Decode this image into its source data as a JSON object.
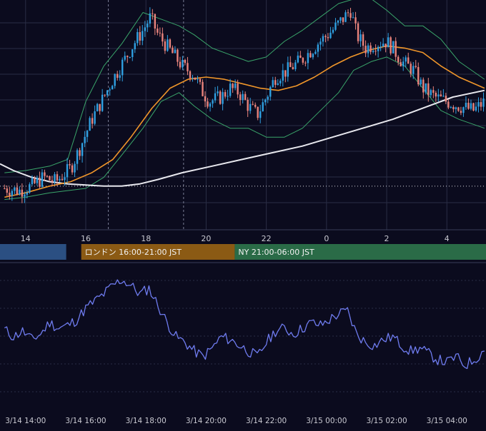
{
  "colors": {
    "background": "#0b0b1e",
    "grid": "#2a2d45",
    "candle_up": "#2f9fe0",
    "candle_down": "#e8837c",
    "ma_orange": "#f0962a",
    "ma_white": "#e8e8ee",
    "bollinger": "#3aa56a",
    "oscillator": "#6f7cf0",
    "session_tokyo": "#2b4f82",
    "session_london": "#8b5a14",
    "session_ny": "#2a6b47",
    "axis_text": "#c8c8d0",
    "session_text": "#f2f2f2"
  },
  "chart_data": [
    {
      "type": "candlestick",
      "x_tick_labels": [
        "14",
        "16",
        "18",
        "20",
        "22",
        "0",
        "2",
        "4"
      ],
      "x_hours": [
        14,
        16,
        18,
        20,
        22,
        24,
        26,
        28
      ],
      "x_range": [
        13.15,
        29.3
      ],
      "y_range": [
        0,
        100
      ],
      "dotted_reference_level": 18,
      "dashed_markers_hours": [
        16.75,
        19.25
      ],
      "close_series": [
        [
          13.3,
          17
        ],
        [
          13.8,
          16
        ],
        [
          14.2,
          18
        ],
        [
          14.6,
          22
        ],
        [
          15.0,
          20
        ],
        [
          15.5,
          26
        ],
        [
          15.8,
          35
        ],
        [
          16.2,
          48
        ],
        [
          16.6,
          58
        ],
        [
          16.9,
          66
        ],
        [
          17.3,
          75
        ],
        [
          17.6,
          82
        ],
        [
          17.9,
          88
        ],
        [
          18.15,
          94
        ],
        [
          18.4,
          86
        ],
        [
          18.8,
          79
        ],
        [
          19.2,
          72
        ],
        [
          19.6,
          68
        ],
        [
          19.8,
          62
        ],
        [
          20.1,
          56
        ],
        [
          20.5,
          58
        ],
        [
          20.8,
          62
        ],
        [
          21.1,
          60
        ],
        [
          21.4,
          54
        ],
        [
          21.7,
          50
        ],
        [
          22.0,
          58
        ],
        [
          22.3,
          67
        ],
        [
          22.7,
          70
        ],
        [
          23.2,
          75
        ],
        [
          23.7,
          82
        ],
        [
          24.2,
          88
        ],
        [
          24.6,
          94
        ],
        [
          24.8,
          97
        ],
        [
          25.0,
          86
        ],
        [
          25.3,
          80
        ],
        [
          25.6,
          82
        ],
        [
          26.0,
          83
        ],
        [
          26.2,
          80
        ],
        [
          26.5,
          74
        ],
        [
          26.9,
          70
        ],
        [
          27.2,
          62
        ],
        [
          27.6,
          58
        ],
        [
          28.0,
          56
        ],
        [
          28.4,
          54
        ],
        [
          28.9,
          52
        ],
        [
          29.25,
          56
        ]
      ],
      "ma_orange": [
        [
          13.3,
          13
        ],
        [
          14.0,
          15
        ],
        [
          14.8,
          18
        ],
        [
          15.5,
          20
        ],
        [
          16.2,
          24
        ],
        [
          16.9,
          30
        ],
        [
          17.5,
          40
        ],
        [
          18.2,
          53
        ],
        [
          18.8,
          62
        ],
        [
          19.4,
          66
        ],
        [
          20.0,
          67
        ],
        [
          20.6,
          66
        ],
        [
          21.2,
          64
        ],
        [
          21.8,
          62
        ],
        [
          22.4,
          61
        ],
        [
          23.0,
          63
        ],
        [
          23.6,
          67
        ],
        [
          24.2,
          72
        ],
        [
          24.8,
          76
        ],
        [
          25.4,
          79
        ],
        [
          26.0,
          81
        ],
        [
          26.6,
          80
        ],
        [
          27.2,
          78
        ],
        [
          27.8,
          72
        ],
        [
          28.4,
          67
        ],
        [
          29.25,
          62
        ]
      ],
      "ma_white": [
        [
          13.15,
          28
        ],
        [
          13.6,
          25
        ],
        [
          14.2,
          22
        ],
        [
          14.8,
          20
        ],
        [
          15.4,
          19
        ],
        [
          16.0,
          18.5
        ],
        [
          16.6,
          18
        ],
        [
          17.2,
          18
        ],
        [
          17.8,
          19
        ],
        [
          18.4,
          21
        ],
        [
          19.2,
          24
        ],
        [
          20.2,
          27
        ],
        [
          21.2,
          30
        ],
        [
          22.2,
          33
        ],
        [
          23.2,
          36
        ],
        [
          24.2,
          40
        ],
        [
          25.2,
          44
        ],
        [
          26.2,
          48
        ],
        [
          27.2,
          53
        ],
        [
          28.2,
          58
        ],
        [
          29.25,
          61
        ]
      ],
      "bollinger_upper": [
        [
          13.3,
          24
        ],
        [
          14.0,
          25
        ],
        [
          14.8,
          27
        ],
        [
          15.4,
          30
        ],
        [
          16.0,
          56
        ],
        [
          16.6,
          72
        ],
        [
          17.2,
          82
        ],
        [
          17.9,
          96
        ],
        [
          18.5,
          93
        ],
        [
          19.1,
          90
        ],
        [
          19.6,
          86
        ],
        [
          20.2,
          80
        ],
        [
          20.8,
          77
        ],
        [
          21.4,
          74
        ],
        [
          22.0,
          76
        ],
        [
          22.6,
          83
        ],
        [
          23.2,
          88
        ],
        [
          23.8,
          94
        ],
        [
          24.4,
          100
        ],
        [
          24.9,
          102
        ],
        [
          25.5,
          102
        ],
        [
          26.0,
          97
        ],
        [
          26.6,
          90
        ],
        [
          27.2,
          90
        ],
        [
          27.8,
          84
        ],
        [
          28.4,
          74
        ],
        [
          29.25,
          66
        ]
      ],
      "bollinger_lower": [
        [
          13.3,
          12
        ],
        [
          14.0,
          13
        ],
        [
          14.8,
          15
        ],
        [
          15.4,
          16
        ],
        [
          16.0,
          17
        ],
        [
          16.6,
          22
        ],
        [
          17.2,
          32
        ],
        [
          17.9,
          44
        ],
        [
          18.5,
          56
        ],
        [
          19.1,
          60
        ],
        [
          19.6,
          54
        ],
        [
          20.2,
          48
        ],
        [
          20.8,
          44
        ],
        [
          21.4,
          44
        ],
        [
          22.0,
          40
        ],
        [
          22.6,
          40
        ],
        [
          23.2,
          44
        ],
        [
          23.8,
          52
        ],
        [
          24.4,
          60
        ],
        [
          24.9,
          70
        ],
        [
          25.5,
          74
        ],
        [
          26.0,
          76
        ],
        [
          26.6,
          72
        ],
        [
          27.2,
          62
        ],
        [
          27.8,
          52
        ],
        [
          28.4,
          48
        ],
        [
          29.25,
          44
        ]
      ]
    },
    {
      "type": "line",
      "x_range": [
        13.15,
        29.3
      ],
      "y_range": [
        0,
        100
      ],
      "series": [
        {
          "values": [
            [
              13.3,
              55
            ],
            [
              13.6,
              50
            ],
            [
              13.9,
              54
            ],
            [
              14.2,
              48
            ],
            [
              14.5,
              52
            ],
            [
              14.8,
              60
            ],
            [
              15.1,
              56
            ],
            [
              15.4,
              58
            ],
            [
              15.7,
              62
            ],
            [
              16.0,
              70
            ],
            [
              16.3,
              75
            ],
            [
              16.6,
              80
            ],
            [
              16.9,
              86
            ],
            [
              17.2,
              90
            ],
            [
              17.5,
              86
            ],
            [
              17.8,
              80
            ],
            [
              18.1,
              84
            ],
            [
              18.4,
              72
            ],
            [
              18.7,
              60
            ],
            [
              19.0,
              50
            ],
            [
              19.3,
              46
            ],
            [
              19.6,
              40
            ],
            [
              19.9,
              36
            ],
            [
              20.2,
              42
            ],
            [
              20.5,
              50
            ],
            [
              20.8,
              48
            ],
            [
              21.1,
              44
            ],
            [
              21.4,
              40
            ],
            [
              21.7,
              36
            ],
            [
              22.0,
              46
            ],
            [
              22.3,
              54
            ],
            [
              22.6,
              56
            ],
            [
              22.9,
              52
            ],
            [
              23.2,
              56
            ],
            [
              23.5,
              60
            ],
            [
              23.8,
              58
            ],
            [
              24.1,
              62
            ],
            [
              24.4,
              66
            ],
            [
              24.7,
              68
            ],
            [
              25.0,
              52
            ],
            [
              25.3,
              46
            ],
            [
              25.6,
              44
            ],
            [
              25.9,
              48
            ],
            [
              26.2,
              50
            ],
            [
              26.5,
              44
            ],
            [
              26.8,
              40
            ],
            [
              27.1,
              42
            ],
            [
              27.4,
              38
            ],
            [
              27.7,
              34
            ],
            [
              28.0,
              32
            ],
            [
              28.3,
              36
            ],
            [
              28.6,
              30
            ],
            [
              28.9,
              34
            ],
            [
              29.25,
              40
            ]
          ]
        }
      ],
      "x_tick_labels": [
        "3/14 14:00",
        "3/14 16:00",
        "3/14 18:00",
        "3/14 20:00",
        "3/14 22:00",
        "3/15 00:00",
        "3/15 02:00",
        "3/15 04:00"
      ],
      "x_hours": [
        14,
        16,
        18,
        20,
        22,
        24,
        26,
        28
      ]
    }
  ],
  "sessions": [
    {
      "label": "",
      "start": 13.15,
      "end": 15.35
    },
    {
      "label": "ロンドン 16:00-21:00 JST",
      "start": 15.85,
      "end": 20.95
    },
    {
      "label": "NY 21:00-06:00 JST",
      "start": 20.95,
      "end": 29.3
    }
  ]
}
